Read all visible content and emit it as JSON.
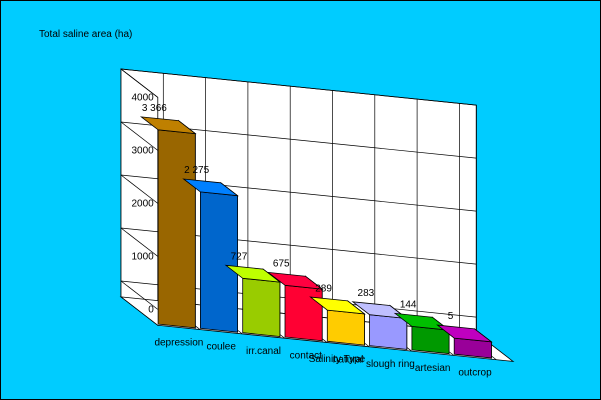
{
  "chart_data": {
    "type": "bar",
    "title": "",
    "ylabel": "Total saline area (ha)",
    "xlabel": "Salinity Type",
    "categories": [
      "depression",
      "coulee",
      "irr.canal",
      "contact",
      "natural",
      "slough ring",
      "artesian",
      "outcrop"
    ],
    "values": [
      3366,
      2275,
      727,
      675,
      289,
      283,
      144,
      5
    ],
    "data_labels": [
      "3 366",
      "2 275",
      "727",
      "675",
      "289",
      "283",
      "144",
      "5"
    ],
    "bar_colors": [
      "#996600",
      "#0066cc",
      "#99cc00",
      "#ff0033",
      "#ffcc00",
      "#9999ff",
      "#009900",
      "#990099"
    ],
    "yticks": [
      "0",
      "1000",
      "2000",
      "3000",
      "4000"
    ],
    "ylim": [
      0,
      4000
    ],
    "grid": true,
    "legend": "none",
    "background_color": "#00ccff"
  }
}
